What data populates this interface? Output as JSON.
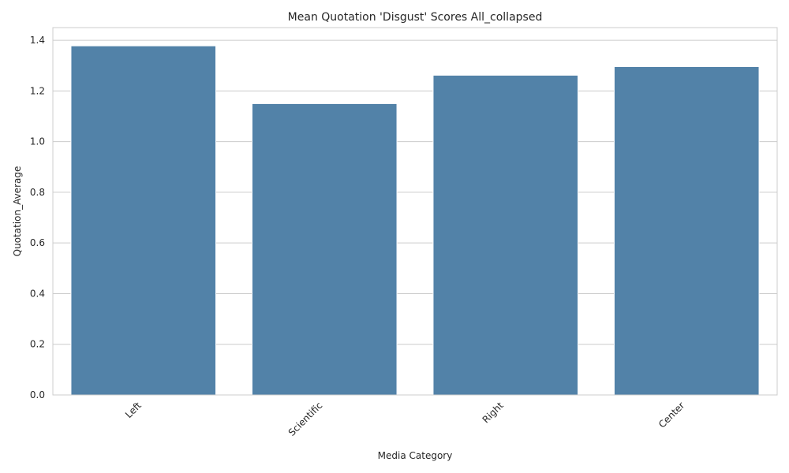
{
  "chart_data": {
    "type": "bar",
    "title": "Mean Quotation 'Disgust' Scores All_collapsed",
    "xlabel": "Media Category",
    "ylabel": "Quotation_Average",
    "categories": [
      "Left",
      "Scientific",
      "Right",
      "Center"
    ],
    "values": [
      1.378,
      1.15,
      1.262,
      1.296
    ],
    "ylim": [
      0,
      1.45
    ],
    "yticks": [
      "0.0",
      "0.2",
      "0.4",
      "0.6",
      "0.8",
      "1.0",
      "1.2",
      "1.4"
    ],
    "grid": "horizontal",
    "bar_color": "#5282a8",
    "grid_color": "#cccccc",
    "x_tick_rotation": "45 degrees"
  }
}
